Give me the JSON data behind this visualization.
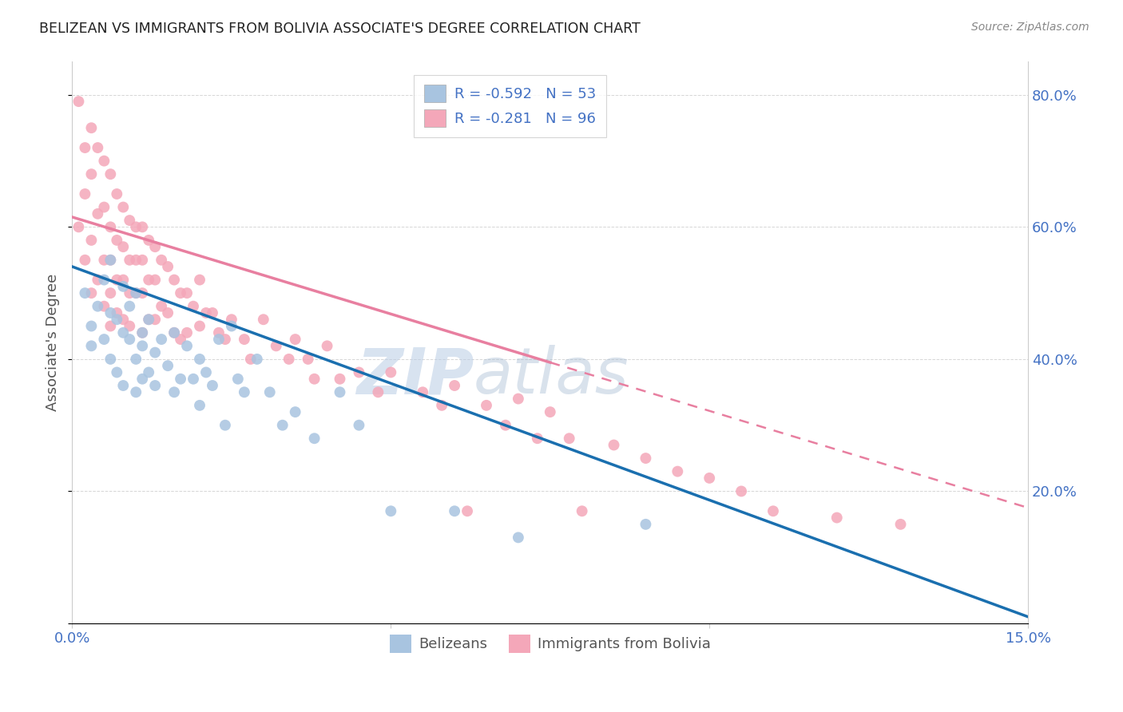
{
  "title": "BELIZEAN VS IMMIGRANTS FROM BOLIVIA ASSOCIATE'S DEGREE CORRELATION CHART",
  "source": "Source: ZipAtlas.com",
  "ylabel": "Associate's Degree",
  "xlim": [
    0.0,
    0.15
  ],
  "ylim": [
    0.0,
    0.85
  ],
  "xtick_positions": [
    0.0,
    0.05,
    0.1,
    0.15
  ],
  "xticklabels": [
    "0.0%",
    "",
    "",
    "15.0%"
  ],
  "ytick_positions": [
    0.0,
    0.2,
    0.4,
    0.6,
    0.8
  ],
  "yticklabels_right": [
    "",
    "20.0%",
    "40.0%",
    "60.0%",
    "80.0%"
  ],
  "belizean_color": "#a8c4e0",
  "bolivia_color": "#f4a7b9",
  "belizean_line_color": "#1a6faf",
  "bolivia_line_color": "#e87fa0",
  "legend_R_belizean": "R = -0.592",
  "legend_N_belizean": "N = 53",
  "legend_R_bolivia": "R = -0.281",
  "legend_N_bolivia": "N = 96",
  "watermark_zip": "ZIP",
  "watermark_atlas": "atlas",
  "belizean_line_x0": 0.0,
  "belizean_line_y0": 0.54,
  "belizean_line_x1": 0.15,
  "belizean_line_y1": 0.01,
  "bolivia_line_x0": 0.0,
  "bolivia_line_y0": 0.615,
  "bolivia_line_x1_solid": 0.075,
  "bolivia_line_y1_solid": 0.395,
  "bolivia_line_x1_dash": 0.15,
  "bolivia_line_y1_dash": 0.175,
  "belizean_scatter_x": [
    0.002,
    0.003,
    0.003,
    0.004,
    0.005,
    0.005,
    0.006,
    0.006,
    0.006,
    0.007,
    0.007,
    0.008,
    0.008,
    0.008,
    0.009,
    0.009,
    0.01,
    0.01,
    0.01,
    0.011,
    0.011,
    0.011,
    0.012,
    0.012,
    0.013,
    0.013,
    0.014,
    0.015,
    0.016,
    0.016,
    0.017,
    0.018,
    0.019,
    0.02,
    0.02,
    0.021,
    0.022,
    0.023,
    0.024,
    0.025,
    0.026,
    0.027,
    0.029,
    0.031,
    0.033,
    0.035,
    0.038,
    0.042,
    0.045,
    0.05,
    0.06,
    0.07,
    0.09
  ],
  "belizean_scatter_y": [
    0.5,
    0.45,
    0.42,
    0.48,
    0.52,
    0.43,
    0.47,
    0.4,
    0.55,
    0.46,
    0.38,
    0.44,
    0.51,
    0.36,
    0.43,
    0.48,
    0.4,
    0.35,
    0.5,
    0.42,
    0.37,
    0.44,
    0.38,
    0.46,
    0.41,
    0.36,
    0.43,
    0.39,
    0.44,
    0.35,
    0.37,
    0.42,
    0.37,
    0.4,
    0.33,
    0.38,
    0.36,
    0.43,
    0.3,
    0.45,
    0.37,
    0.35,
    0.4,
    0.35,
    0.3,
    0.32,
    0.28,
    0.35,
    0.3,
    0.17,
    0.17,
    0.13,
    0.15
  ],
  "bolivia_scatter_x": [
    0.001,
    0.001,
    0.002,
    0.002,
    0.002,
    0.003,
    0.003,
    0.003,
    0.003,
    0.004,
    0.004,
    0.004,
    0.005,
    0.005,
    0.005,
    0.005,
    0.006,
    0.006,
    0.006,
    0.006,
    0.006,
    0.007,
    0.007,
    0.007,
    0.007,
    0.008,
    0.008,
    0.008,
    0.008,
    0.009,
    0.009,
    0.009,
    0.009,
    0.01,
    0.01,
    0.01,
    0.011,
    0.011,
    0.011,
    0.011,
    0.012,
    0.012,
    0.012,
    0.013,
    0.013,
    0.013,
    0.014,
    0.014,
    0.015,
    0.015,
    0.016,
    0.016,
    0.017,
    0.017,
    0.018,
    0.018,
    0.019,
    0.02,
    0.02,
    0.021,
    0.022,
    0.023,
    0.024,
    0.025,
    0.027,
    0.028,
    0.03,
    0.032,
    0.034,
    0.035,
    0.037,
    0.038,
    0.04,
    0.042,
    0.045,
    0.048,
    0.05,
    0.055,
    0.058,
    0.06,
    0.062,
    0.065,
    0.068,
    0.07,
    0.073,
    0.075,
    0.078,
    0.08,
    0.085,
    0.09,
    0.095,
    0.1,
    0.105,
    0.11,
    0.12,
    0.13
  ],
  "bolivia_scatter_y": [
    0.79,
    0.6,
    0.72,
    0.65,
    0.55,
    0.75,
    0.68,
    0.58,
    0.5,
    0.72,
    0.62,
    0.52,
    0.7,
    0.63,
    0.55,
    0.48,
    0.68,
    0.6,
    0.55,
    0.5,
    0.45,
    0.65,
    0.58,
    0.52,
    0.47,
    0.63,
    0.57,
    0.52,
    0.46,
    0.61,
    0.55,
    0.5,
    0.45,
    0.6,
    0.55,
    0.5,
    0.6,
    0.55,
    0.5,
    0.44,
    0.58,
    0.52,
    0.46,
    0.57,
    0.52,
    0.46,
    0.55,
    0.48,
    0.54,
    0.47,
    0.52,
    0.44,
    0.5,
    0.43,
    0.5,
    0.44,
    0.48,
    0.52,
    0.45,
    0.47,
    0.47,
    0.44,
    0.43,
    0.46,
    0.43,
    0.4,
    0.46,
    0.42,
    0.4,
    0.43,
    0.4,
    0.37,
    0.42,
    0.37,
    0.38,
    0.35,
    0.38,
    0.35,
    0.33,
    0.36,
    0.17,
    0.33,
    0.3,
    0.34,
    0.28,
    0.32,
    0.28,
    0.17,
    0.27,
    0.25,
    0.23,
    0.22,
    0.2,
    0.17,
    0.16,
    0.15
  ]
}
